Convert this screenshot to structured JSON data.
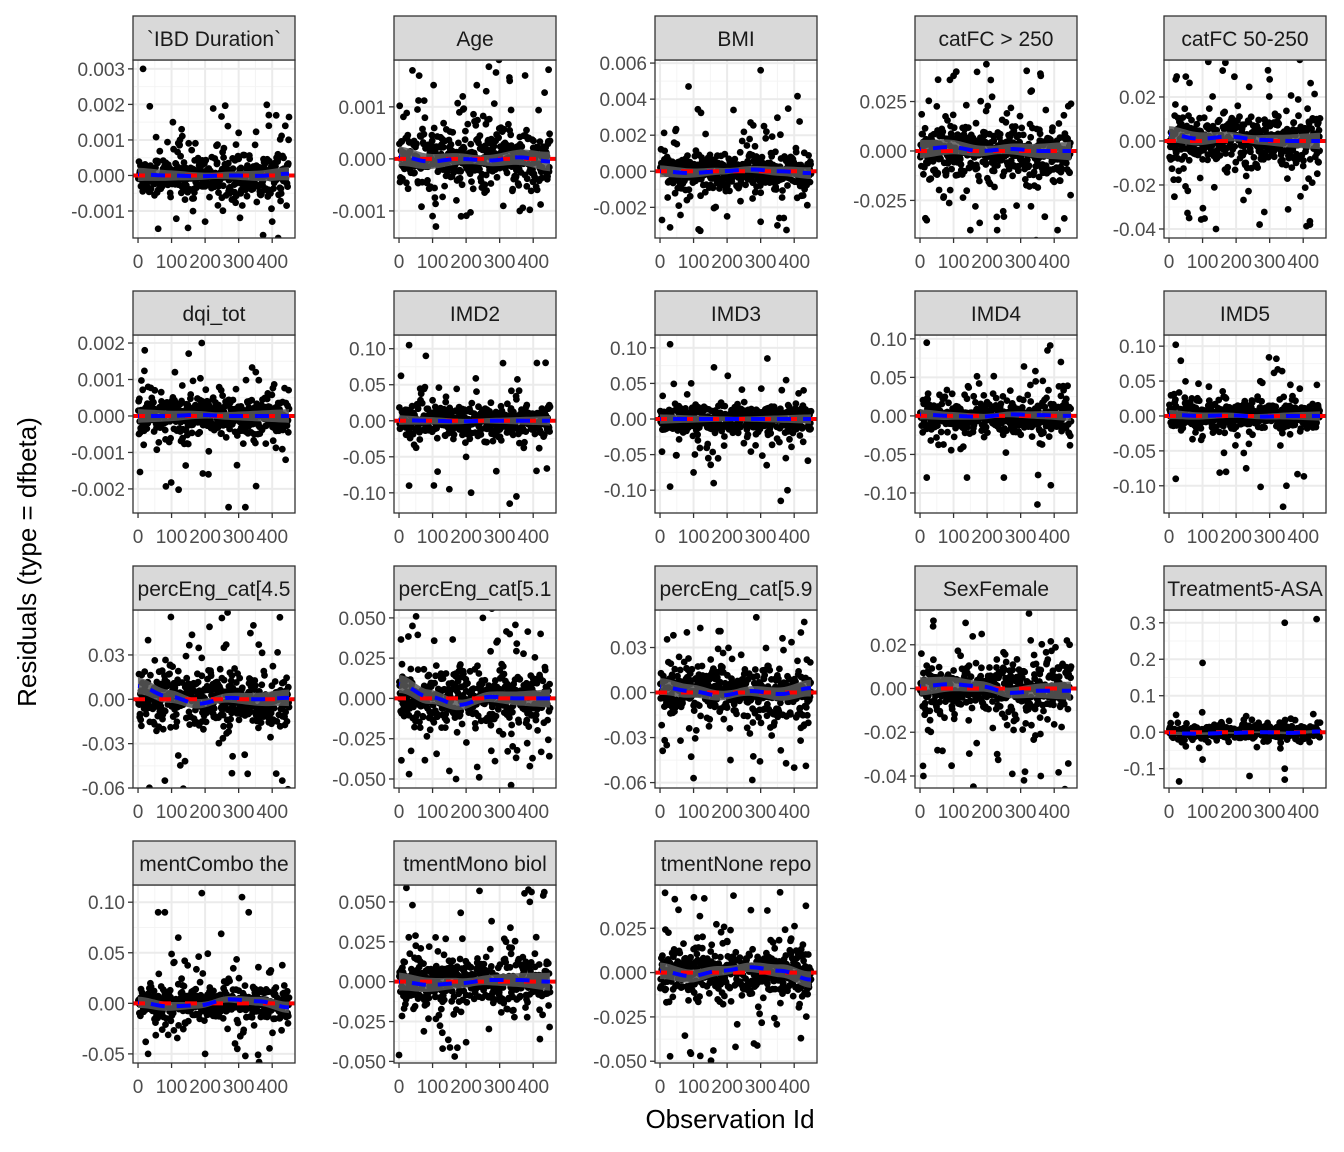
{
  "chart_data": {
    "type": "scatter",
    "xlabel": "Observation Id",
    "ylabel": "Residuals (type = dfbeta)",
    "xlim": [
      -15,
      468
    ],
    "x_ticks": [
      0,
      100,
      200,
      300,
      400
    ],
    "x_tick_labels": [
      "0",
      "100",
      "200",
      "300",
      "400"
    ],
    "n_observations": 450,
    "grid": true,
    "colors": {
      "points": "#000000",
      "smooth_line": "#0000ff",
      "reference_line": "#ff0000",
      "band": "#595959",
      "strip_bg": "#d9d9d9"
    },
    "facets": [
      {
        "label": "`IBD Duration`",
        "ylim": [
          -0.00176,
          0.00325
        ],
        "yticks": [
          -0.001,
          0,
          0.001,
          0.002,
          0.003
        ],
        "ytick_labels": [
          "-0.001",
          "0.000",
          "0.001",
          "0.002",
          "0.003"
        ],
        "spread": 0.0004,
        "outliers": [
          [
            15,
            0.003
          ],
          [
            390,
            0.0017
          ],
          [
            390,
            0.0014
          ],
          [
            60,
            -0.0015
          ],
          [
            200,
            -0.0013
          ],
          [
            400,
            -0.0013
          ],
          [
            130,
            0.0013
          ],
          [
            300,
            0.0012
          ]
        ],
        "smooth": [
          3e-05,
          0,
          -2e-05,
          0,
          -1e-05,
          5e-05
        ]
      },
      {
        "label": "Age",
        "ylim": [
          -0.00152,
          0.0019
        ],
        "yticks": [
          -0.001,
          0,
          0.001
        ],
        "ytick_labels": [
          "-0.001",
          "0.000",
          "0.001"
        ],
        "spread": 0.0004,
        "outliers": [
          [
            40,
            0.0017
          ],
          [
            60,
            0.0016
          ],
          [
            330,
            0.0015
          ],
          [
            190,
            0.0012
          ],
          [
            260,
            0.0013
          ],
          [
            110,
            -0.0013
          ],
          [
            360,
            -0.001
          ],
          [
            100,
            -0.0011
          ]
        ],
        "smooth": [
          5e-05,
          -5e-05,
          0,
          -3e-05,
          3e-05,
          -5e-05
        ]
      },
      {
        "label": "BMI",
        "ylim": [
          -0.0037,
          0.00617
        ],
        "yticks": [
          -0.002,
          0,
          0.002,
          0.004,
          0.006
        ],
        "ytick_labels": [
          "-0.002",
          "0.000",
          "0.002",
          "0.004",
          "0.006"
        ],
        "spread": 0.0007,
        "outliers": [
          [
            85,
            0.0047
          ],
          [
            300,
            0.0056
          ],
          [
            270,
            0.0027
          ],
          [
            310,
            0.0025
          ],
          [
            200,
            -0.0025
          ],
          [
            120,
            -0.0033
          ],
          [
            350,
            -0.003
          ],
          [
            300,
            -0.0028
          ]
        ],
        "smooth": [
          0,
          -0.0001,
          0,
          0.0001,
          0,
          -0.0001
        ]
      },
      {
        "label": "catFC > 250",
        "ylim": [
          -0.044,
          0.046
        ],
        "yticks": [
          -0.025,
          0,
          0.025
        ],
        "ytick_labels": [
          "-0.025",
          "0.000",
          "0.025"
        ],
        "spread": 0.01,
        "outliers": [
          [
            100,
            0.038
          ],
          [
            170,
            0.04
          ],
          [
            360,
            0.038
          ],
          [
            150,
            -0.04
          ],
          [
            230,
            -0.04
          ],
          [
            410,
            -0.04
          ],
          [
            20,
            -0.035
          ],
          [
            330,
            0.03
          ]
        ],
        "smooth": [
          0.001,
          0.002,
          0,
          0.001,
          0,
          0
        ]
      },
      {
        "label": "catFC 50-250",
        "ylim": [
          -0.0441,
          0.0368
        ],
        "yticks": [
          -0.04,
          -0.02,
          0,
          0.02
        ],
        "ytick_labels": [
          "-0.04",
          "-0.02",
          "0.00",
          "0.02"
        ],
        "spread": 0.008,
        "outliers": [
          [
            160,
            0.032
          ],
          [
            300,
            0.028
          ],
          [
            20,
            0.028
          ],
          [
            140,
            -0.04
          ],
          [
            270,
            -0.038
          ],
          [
            420,
            -0.038
          ],
          [
            60,
            -0.035
          ]
        ],
        "smooth": [
          0.003,
          0.001,
          0.002,
          0.0005,
          0,
          0
        ]
      },
      {
        "label": "dqi_tot",
        "ylim": [
          -0.00266,
          0.00222
        ],
        "yticks": [
          -0.002,
          -0.001,
          0,
          0.001,
          0.002
        ],
        "ytick_labels": [
          "-0.002",
          "-0.001",
          "0.000",
          "0.001",
          "0.002"
        ],
        "spread": 0.0004,
        "outliers": [
          [
            190,
            0.002
          ],
          [
            20,
            0.0018
          ],
          [
            270,
            -0.0025
          ],
          [
            320,
            -0.0025
          ],
          [
            440,
            -0.0012
          ],
          [
            110,
            0.0012
          ],
          [
            210,
            -0.0016
          ]
        ],
        "smooth": [
          0,
          0,
          3e-05,
          0,
          0,
          0
        ]
      },
      {
        "label": "IMD2",
        "ylim": [
          -0.128,
          0.119
        ],
        "yticks": [
          -0.1,
          -0.05,
          0,
          0.05,
          0.1
        ],
        "ytick_labels": [
          "-0.10",
          "-0.05",
          "0.00",
          "0.05",
          "0.10"
        ],
        "spread": 0.014,
        "outliers": [
          [
            30,
            0.105
          ],
          [
            80,
            0.09
          ],
          [
            310,
            0.08
          ],
          [
            30,
            -0.09
          ],
          [
            150,
            -0.095
          ],
          [
            290,
            -0.07
          ],
          [
            350,
            -0.105
          ],
          [
            330,
            -0.115
          ]
        ],
        "smooth": [
          0.001,
          0,
          -0.001,
          0,
          0,
          0
        ]
      },
      {
        "label": "IMD3",
        "ylim": [
          -0.132,
          0.118
        ],
        "yticks": [
          -0.1,
          -0.05,
          0,
          0.05,
          0.1
        ],
        "ytick_labels": [
          "-0.10",
          "-0.05",
          "0.00",
          "0.05",
          "0.10"
        ],
        "spread": 0.014,
        "outliers": [
          [
            30,
            0.105
          ],
          [
            320,
            0.085
          ],
          [
            30,
            -0.095
          ],
          [
            100,
            -0.075
          ],
          [
            160,
            -0.09
          ],
          [
            360,
            -0.115
          ],
          [
            380,
            -0.1
          ]
        ],
        "smooth": [
          0,
          0,
          0,
          0,
          0,
          0
        ]
      },
      {
        "label": "IMD4",
        "ylim": [
          -0.126,
          0.105
        ],
        "yticks": [
          -0.1,
          -0.05,
          0,
          0.05,
          0.1
        ],
        "ytick_labels": [
          "-0.10",
          "-0.05",
          "0.00",
          "0.05",
          "0.10"
        ],
        "spread": 0.014,
        "outliers": [
          [
            20,
            0.095
          ],
          [
            380,
            0.085
          ],
          [
            420,
            0.07
          ],
          [
            20,
            -0.08
          ],
          [
            140,
            -0.08
          ],
          [
            250,
            -0.08
          ],
          [
            350,
            -0.115
          ],
          [
            390,
            -0.09
          ]
        ],
        "smooth": [
          0.002,
          0,
          -0.001,
          0.002,
          0.001,
          0
        ]
      },
      {
        "label": "IMD5",
        "ylim": [
          -0.139,
          0.116
        ],
        "yticks": [
          -0.1,
          -0.05,
          0,
          0.05,
          0.1
        ],
        "ytick_labels": [
          "-0.10",
          "-0.05",
          "0.00",
          "0.05",
          "0.10"
        ],
        "spread": 0.014,
        "outliers": [
          [
            20,
            0.102
          ],
          [
            320,
            0.082
          ],
          [
            20,
            -0.09
          ],
          [
            170,
            -0.08
          ],
          [
            230,
            -0.075
          ],
          [
            340,
            -0.13
          ],
          [
            350,
            -0.1
          ]
        ],
        "smooth": [
          0.002,
          0,
          0.001,
          -0.001,
          0,
          0
        ]
      },
      {
        "label": "percEng_cat[4.5",
        "ylim": [
          -0.06,
          0.0604
        ],
        "yticks": [
          -0.06,
          -0.03,
          0,
          0.03
        ],
        "ytick_labels": [
          "-0.06",
          "-0.03",
          "0.00",
          "0.03"
        ],
        "spread": 0.012,
        "outliers": [
          [
            250,
            0.055
          ],
          [
            30,
            0.04
          ],
          [
            360,
            0.037
          ],
          [
            80,
            -0.055
          ],
          [
            280,
            -0.05
          ],
          [
            430,
            -0.055
          ],
          [
            120,
            -0.038
          ],
          [
            190,
            0.028
          ]
        ],
        "smooth": [
          0.009,
          0.002,
          -0.003,
          0.001,
          0,
          0.001
        ]
      },
      {
        "label": "percEng_cat[5.1",
        "ylim": [
          -0.0556,
          0.0549
        ],
        "yticks": [
          -0.05,
          -0.025,
          0,
          0.025,
          0.05
        ],
        "ytick_labels": [
          "-0.050",
          "-0.025",
          "0.000",
          "0.025",
          "0.050"
        ],
        "spread": 0.012,
        "outliers": [
          [
            250,
            0.05
          ],
          [
            40,
            0.045
          ],
          [
            330,
            0.04
          ],
          [
            30,
            -0.047
          ],
          [
            150,
            -0.045
          ],
          [
            390,
            -0.042
          ],
          [
            170,
            -0.05
          ]
        ],
        "smooth": [
          0.009,
          0.001,
          -0.004,
          0.001,
          0,
          0
        ]
      },
      {
        "label": "percEng_cat[5.9",
        "ylim": [
          -0.0636,
          0.055
        ],
        "yticks": [
          -0.06,
          -0.03,
          0,
          0.03
        ],
        "ytick_labels": [
          "-0.06",
          "-0.03",
          "0.00",
          "0.03"
        ],
        "spread": 0.012,
        "outliers": [
          [
            430,
            0.047
          ],
          [
            420,
            0.04
          ],
          [
            120,
            0.043
          ],
          [
            100,
            -0.057
          ],
          [
            20,
            -0.035
          ],
          [
            400,
            -0.05
          ],
          [
            210,
            -0.045
          ]
        ],
        "smooth": [
          0.004,
          0.001,
          -0.002,
          0.001,
          -0.001,
          0.003
        ]
      },
      {
        "label": "SexFemale",
        "ylim": [
          -0.0455,
          0.0359
        ],
        "yticks": [
          -0.04,
          -0.02,
          0,
          0.02
        ],
        "ytick_labels": [
          "-0.04",
          "-0.02",
          "0.00",
          "0.02"
        ],
        "spread": 0.009,
        "outliers": [
          [
            40,
            0.031
          ],
          [
            330,
            0.022
          ],
          [
            10,
            -0.04
          ],
          [
            310,
            -0.042
          ],
          [
            360,
            -0.04
          ],
          [
            230,
            -0.03
          ]
        ],
        "smooth": [
          0.001,
          0.002,
          0.001,
          -0.002,
          -0.001,
          -0.001
        ]
      },
      {
        "label": "Treatment5-ASA",
        "ylim": [
          -0.153,
          0.335
        ],
        "yticks": [
          -0.1,
          0,
          0.1,
          0.2,
          0.3
        ],
        "ytick_labels": [
          "-0.1",
          "0.0",
          "0.1",
          "0.2",
          "0.3"
        ],
        "spread": 0.01,
        "outliers": [
          [
            100,
            0.19
          ],
          [
            345,
            0.3
          ],
          [
            440,
            0.31
          ],
          [
            30,
            -0.135
          ],
          [
            100,
            -0.075
          ],
          [
            240,
            -0.12
          ],
          [
            345,
            -0.13
          ],
          [
            345,
            -0.1
          ]
        ],
        "smooth": [
          -0.003,
          -0.004,
          -0.002,
          0,
          -0.002,
          0.002
        ]
      },
      {
        "label": "mentCombo the",
        "ylim": [
          -0.059,
          0.117
        ],
        "yticks": [
          -0.05,
          0,
          0.05,
          0.1
        ],
        "ytick_labels": [
          "-0.05",
          "0.00",
          "0.05",
          "0.10"
        ],
        "spread": 0.012,
        "outliers": [
          [
            80,
            0.09
          ],
          [
            60,
            0.09
          ],
          [
            310,
            0.105
          ],
          [
            330,
            0.09
          ],
          [
            120,
            0.065
          ],
          [
            30,
            -0.05
          ],
          [
            200,
            -0.05
          ],
          [
            320,
            -0.052
          ]
        ],
        "smooth": [
          0.001,
          -0.003,
          -0.002,
          0.004,
          0.002,
          -0.004
        ]
      },
      {
        "label": "tmentMono biol",
        "ylim": [
          -0.051,
          0.0606
        ],
        "yticks": [
          -0.05,
          -0.025,
          0,
          0.025,
          0.05
        ],
        "ytick_labels": [
          "-0.050",
          "-0.025",
          "0.000",
          "0.025",
          "0.050"
        ],
        "spread": 0.012,
        "outliers": [
          [
            430,
            0.054
          ],
          [
            40,
            0.048
          ],
          [
            390,
            0.05
          ],
          [
            0,
            -0.046
          ],
          [
            130,
            -0.042
          ],
          [
            200,
            -0.038
          ],
          [
            420,
            -0.036
          ]
        ],
        "smooth": [
          0,
          -0.002,
          -0.001,
          0.001,
          0.001,
          0
        ]
      },
      {
        "label": "tmentNone repo",
        "ylim": [
          -0.051,
          0.0494
        ],
        "yticks": [
          -0.05,
          -0.025,
          0,
          0.025
        ],
        "ytick_labels": [
          "-0.050",
          "-0.025",
          "0.000",
          "0.025"
        ],
        "spread": 0.01,
        "outliers": [
          [
            15,
            0.045
          ],
          [
            320,
            0.035
          ],
          [
            90,
            -0.045
          ],
          [
            120,
            -0.047
          ],
          [
            420,
            -0.037
          ],
          [
            280,
            -0.04
          ]
        ],
        "smooth": [
          0.001,
          -0.002,
          0.001,
          0.003,
          0.001,
          -0.004
        ]
      }
    ]
  }
}
